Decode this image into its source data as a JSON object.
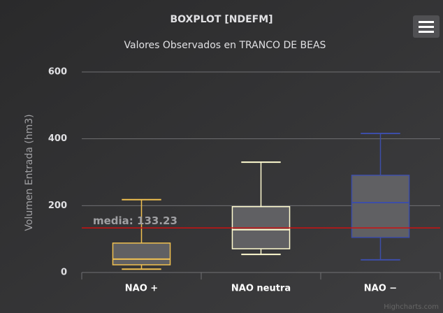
{
  "chart_data": {
    "type": "boxplot",
    "title": "BOXPLOT [NDEFM]",
    "subtitle": "Valores Observados en TRANCO DE BEAS",
    "y_axis_title": "Volumen Entrada (hm3)",
    "categories": [
      "NAO +",
      "NAO neutra",
      "NAO −"
    ],
    "boxes": [
      {
        "low": 10,
        "q1": 23,
        "median": 40,
        "q3": 88,
        "high": 218,
        "color": "#f0c050"
      },
      {
        "low": 54,
        "q1": 71,
        "median": 128,
        "q3": 197,
        "high": 330,
        "color": "#fffbd0"
      },
      {
        "low": 38,
        "q1": 105,
        "median": 209,
        "q3": 291,
        "high": 416,
        "color": "#3d4ea8"
      }
    ],
    "box_fill": "#606063",
    "plot_line": {
      "value": 133.23,
      "label": "media: 133.23",
      "color": "#cc1111"
    },
    "ylim": [
      0,
      600
    ],
    "yticks": [
      0,
      200,
      400,
      600
    ],
    "grid": true,
    "credits": "Highcharts.com"
  }
}
